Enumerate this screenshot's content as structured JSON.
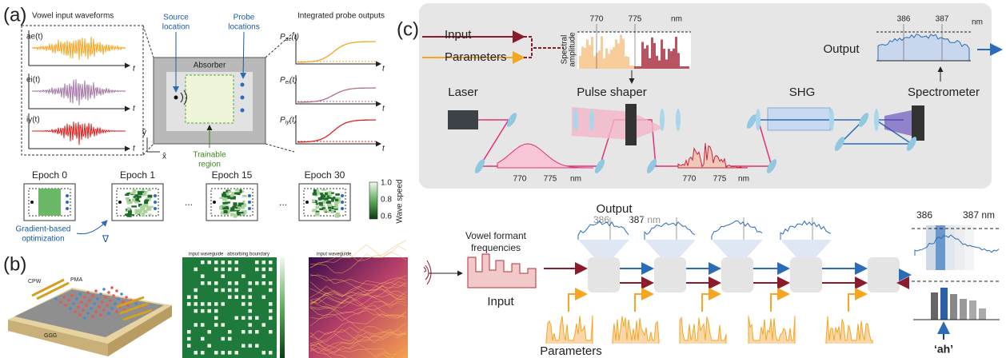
{
  "panel_a": {
    "label": "(a)",
    "waveforms_title": "Vowel input waveforms",
    "waveform_labels": [
      "ae(t)",
      "ei(t)",
      "iy(t)"
    ],
    "t_labels_in": [
      "t",
      "t",
      "t"
    ],
    "source_location": [
      "Source",
      "location"
    ],
    "probe_locations": [
      "Probe",
      "locations"
    ],
    "absorber": "Absorber",
    "trainable_region": [
      "Trainable",
      "region"
    ],
    "axis_y": "ŷ",
    "axis_x": "x̂",
    "outputs_title": "Integrated probe outputs",
    "output_labels": [
      {
        "base": "P",
        "sub": "ae",
        "arg": "(t)"
      },
      {
        "base": "P",
        "sub": "ei",
        "arg": "(t)"
      },
      {
        "base": "P",
        "sub": "iy",
        "arg": "(t)"
      }
    ],
    "t_labels_out": [
      "t",
      "t",
      "t"
    ],
    "epochs": [
      "Epoch 0",
      "Epoch 1",
      "Epoch 15",
      "Epoch 30"
    ],
    "ellipses": [
      "...",
      "..."
    ],
    "colorbar_ticks": [
      "1.0",
      "0.8",
      "0.6"
    ],
    "colorbar_label": "Wave speed",
    "optimization": [
      "Gradient-based",
      "optimization"
    ],
    "gradient_symbol": "∇"
  },
  "panel_b": {
    "label": "(b)",
    "device_labels": [
      "CPW",
      "PMA",
      "GGG"
    ],
    "map_labels": [
      "input waveguide",
      "absorbing boundary",
      "input waveguide"
    ]
  },
  "panel_c": {
    "label": "(c)",
    "input": "Input",
    "parameters": "Parameters",
    "spectrum_top_ticks": [
      "770",
      "775",
      "nm"
    ],
    "spectral_amplitude": [
      "Spectral",
      "amplitude"
    ],
    "output_ticks": [
      "386",
      "387",
      "nm"
    ],
    "output": "Output",
    "laser": "Laser",
    "pulse_shaper": "Pulse shaper",
    "shg": "SHG",
    "spectrometer": "Spectrometer",
    "laser_spectrum_ticks": [
      "770",
      "775",
      "nm"
    ],
    "shaped_spectrum_ticks": [
      "770",
      "775",
      "nm"
    ],
    "network": {
      "output": "Output",
      "output_ticks": [
        "386",
        "387 nm"
      ],
      "vowel_formant": [
        "Vowel formant",
        "frequencies"
      ],
      "input": "Input",
      "parameters": "Parameters",
      "result_ticks": [
        "386",
        "387 nm"
      ],
      "result": "‘ah’"
    }
  }
}
